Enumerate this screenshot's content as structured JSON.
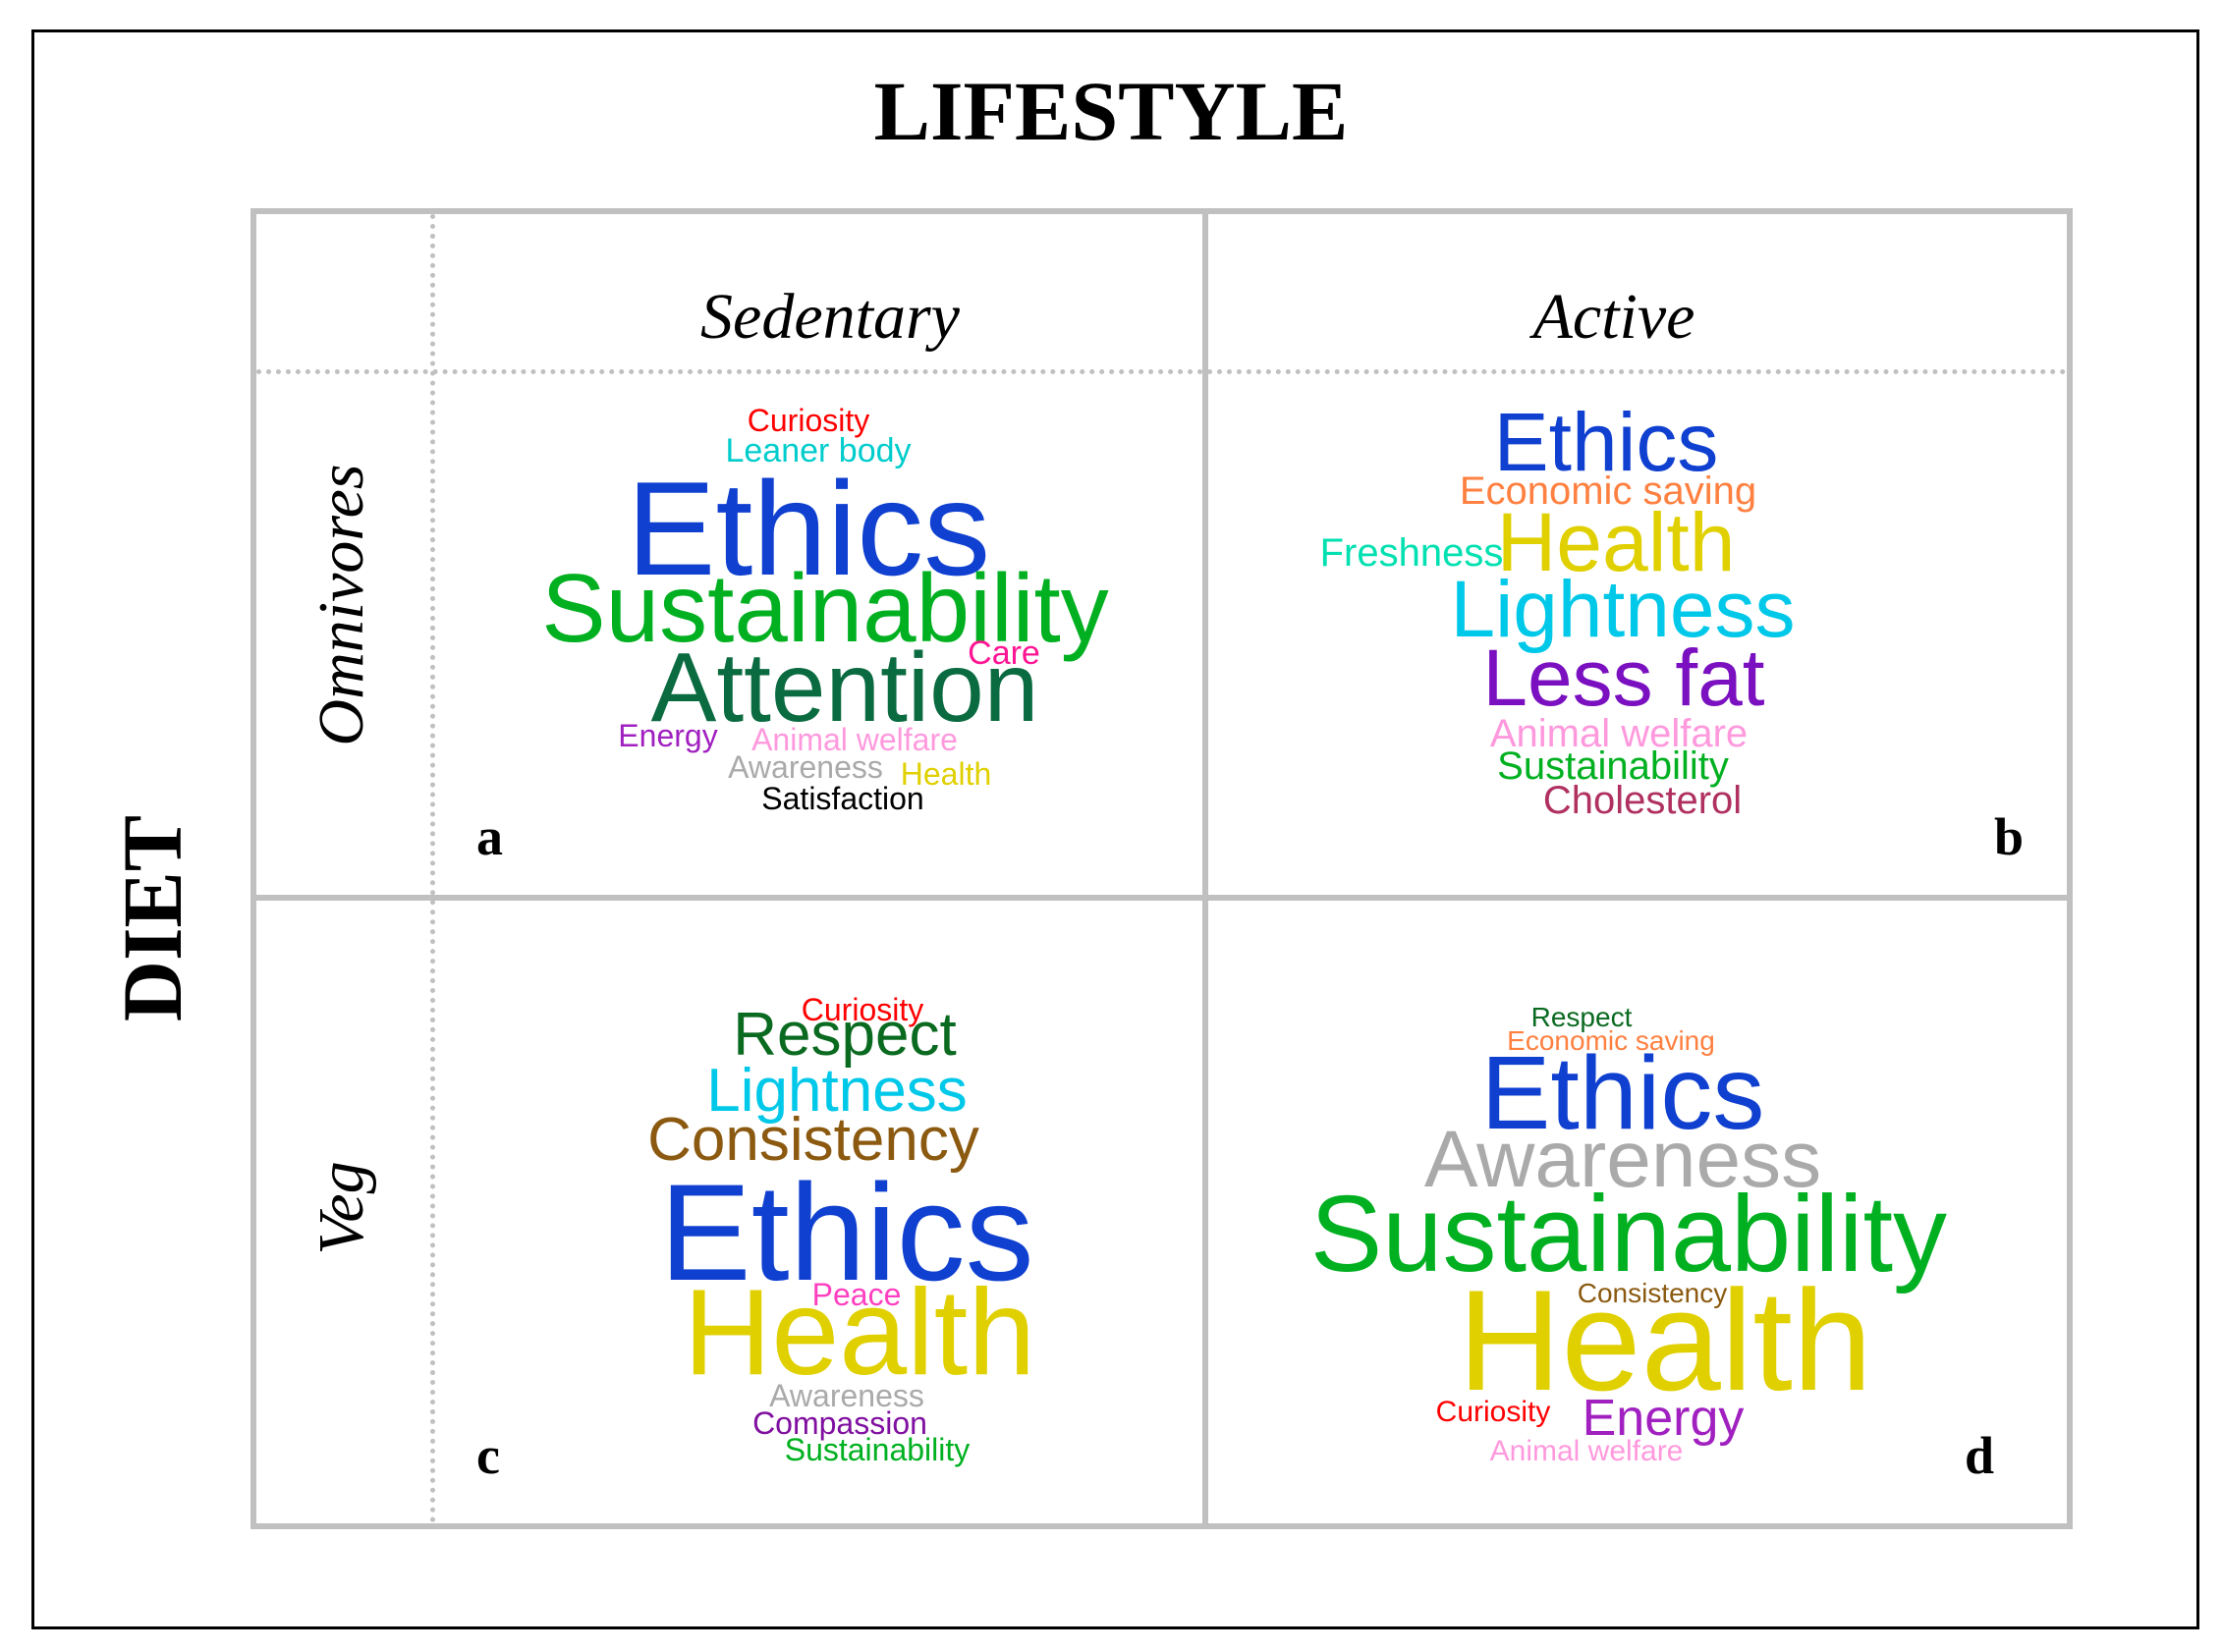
{
  "title": "LIFESTYLE",
  "axis_label": "DIET",
  "columns": [
    "Sedentary",
    "Active"
  ],
  "rows": [
    "Omnivores",
    "Veg"
  ],
  "panels": [
    {
      "label": "a",
      "words": [
        {
          "text": "Curiosity",
          "color": "#ff0000"
        },
        {
          "text": "Leaner body",
          "color": "#00cccc"
        },
        {
          "text": "Ethics",
          "color": "#1040d0"
        },
        {
          "text": "Sustainability",
          "color": "#00b020"
        },
        {
          "text": "Care",
          "color": "#ff1493"
        },
        {
          "text": "Attention",
          "color": "#0a6a40"
        },
        {
          "text": "Energy",
          "color": "#a020c0"
        },
        {
          "text": "Animal welfare",
          "color": "#ff99dd"
        },
        {
          "text": "Awareness",
          "color": "#aaaaaa"
        },
        {
          "text": "Health",
          "color": "#e0d000"
        },
        {
          "text": "Satisfaction",
          "color": "#000000"
        }
      ]
    },
    {
      "label": "b",
      "words": [
        {
          "text": "Ethics",
          "color": "#1040d0"
        },
        {
          "text": "Economic saving",
          "color": "#ff8040"
        },
        {
          "text": "Freshness",
          "color": "#00e0b0"
        },
        {
          "text": "Health",
          "color": "#e0d000"
        },
        {
          "text": "Lightness",
          "color": "#00c8e8"
        },
        {
          "text": "Less fat",
          "color": "#7a10c0"
        },
        {
          "text": "Animal welfare",
          "color": "#ff99dd"
        },
        {
          "text": "Sustainability",
          "color": "#00b020"
        },
        {
          "text": "Cholesterol",
          "color": "#b03060"
        }
      ]
    },
    {
      "label": "c",
      "words": [
        {
          "text": "Curiosity",
          "color": "#ff0000"
        },
        {
          "text": "Respect",
          "color": "#0a6a20"
        },
        {
          "text": "Lightness",
          "color": "#00c8e8"
        },
        {
          "text": "Consistency",
          "color": "#8b5a10"
        },
        {
          "text": "Ethics",
          "color": "#1040d0"
        },
        {
          "text": "Peace",
          "color": "#ff40c0"
        },
        {
          "text": "Health",
          "color": "#e0d000"
        },
        {
          "text": "Awareness",
          "color": "#aaaaaa"
        },
        {
          "text": "Compassion",
          "color": "#8010a0"
        },
        {
          "text": "Sustainability",
          "color": "#00b020"
        }
      ]
    },
    {
      "label": "d",
      "words": [
        {
          "text": "Respect",
          "color": "#0a6a20"
        },
        {
          "text": "Economic saving",
          "color": "#ff8040"
        },
        {
          "text": "Ethics",
          "color": "#1040d0"
        },
        {
          "text": "Awareness",
          "color": "#aaaaaa"
        },
        {
          "text": "Sustainability",
          "color": "#00b020"
        },
        {
          "text": "Consistency",
          "color": "#8b5a10"
        },
        {
          "text": "Health",
          "color": "#e0d000"
        },
        {
          "text": "Curiosity",
          "color": "#ff0000"
        },
        {
          "text": "Energy",
          "color": "#a020c0"
        },
        {
          "text": "Animal welfare",
          "color": "#ff99dd"
        }
      ]
    }
  ]
}
